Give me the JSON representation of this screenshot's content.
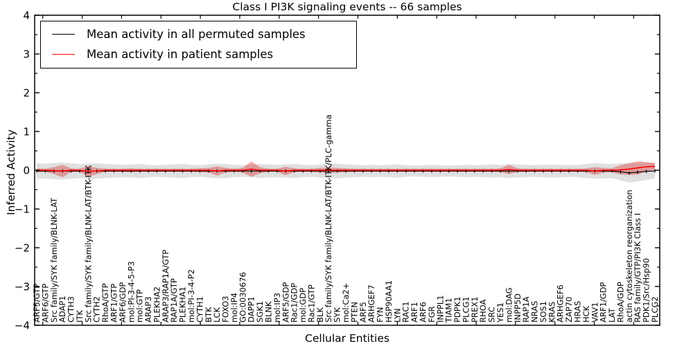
{
  "chart_data": {
    "type": "line",
    "title": "Class I PI3K signaling events -- 66 samples",
    "xlabel": "Cellular Entities",
    "ylabel": "Inferred Activity",
    "ylim": [
      -4,
      4
    ],
    "ytick_step": 1,
    "grid": false,
    "legend_position": "upper left",
    "categories": [
      "ARF5/GTP",
      "ARF6/GTP",
      "Src family/SYK family/BLNK-LAT",
      "ADAP1",
      "CYTH3",
      "ITK",
      "Src family/SYK family/BLNK-LAT/BTK-ITK",
      "CYTH2",
      "RhoA/GTP",
      "ARF1/GTP",
      "ARF6/GDP",
      "mol:PI-3-4-5-P3",
      "mol:GTP",
      "ARAP3",
      "PLEKHA2",
      "ARAP3/RAP1A/GTP",
      "RAP1A/GTP",
      "PLEKHA1",
      "mol:PI-3-4-P2",
      "CYTH1",
      "BTK",
      "LCK",
      "FOXO3",
      "mol:IP4",
      "GO:0030676",
      "DAPP1",
      "SGK1",
      "BLNK",
      "mol:IP3",
      "ARF5/GDP",
      "Rac1/GDP",
      "mol:GDP",
      "Rac1/GTP",
      "BLK",
      "Src family/SYK family/BLNK-LAT/BTK-ITK/PLC-gamma",
      "SYK",
      "mol:Ca2+",
      "PTEN",
      "ARF5",
      "ARHGEF7",
      "FYN",
      "HSP90AA1",
      "LYN",
      "RAC1",
      "ARF1",
      "ARF6",
      "FGR",
      "INPPL1",
      "TIAM1",
      "PDPK1",
      "PLCG1",
      "PREX1",
      "RHOA",
      "SRC",
      "YES1",
      "mol:DAG",
      "INPP5D",
      "RAP1A",
      "NRAS",
      "SOS1",
      "KRAS",
      "ARHGEF6",
      "ZAP70",
      "HRAS",
      "HCK",
      "VAV1",
      "ARF1/GDP",
      "LAT",
      "RhoA/GDP",
      "actin cytoskeleton reorganization",
      "RAS family/GTP/PI3K Class I",
      "PDK1/Src/Hsp90",
      "PLCG2"
    ],
    "series": [
      {
        "name": "Mean activity in all permuted samples",
        "color": "#000000",
        "band_color": "#bbbbbb",
        "band_opacity": 0.45,
        "values": [
          -0.02,
          -0.02,
          -0.02,
          -0.02,
          -0.02,
          -0.02,
          -0.02,
          -0.02,
          -0.02,
          -0.02,
          -0.02,
          -0.02,
          -0.02,
          -0.02,
          -0.02,
          -0.02,
          -0.02,
          -0.02,
          -0.02,
          -0.02,
          -0.02,
          -0.02,
          -0.02,
          -0.02,
          -0.02,
          -0.02,
          -0.02,
          -0.02,
          -0.02,
          -0.02,
          -0.02,
          -0.02,
          -0.02,
          -0.02,
          -0.02,
          -0.02,
          -0.02,
          -0.02,
          -0.02,
          -0.02,
          -0.02,
          -0.02,
          -0.02,
          -0.02,
          -0.02,
          -0.02,
          -0.02,
          -0.02,
          -0.02,
          -0.02,
          -0.02,
          -0.02,
          -0.02,
          -0.02,
          -0.02,
          -0.02,
          -0.02,
          -0.02,
          -0.02,
          -0.02,
          -0.02,
          -0.02,
          -0.02,
          -0.02,
          -0.02,
          -0.02,
          -0.02,
          -0.02,
          -0.04,
          -0.07,
          -0.05,
          -0.03,
          -0.02
        ],
        "band_halfwidth": [
          0.2,
          0.19,
          0.21,
          0.22,
          0.2,
          0.18,
          0.19,
          0.2,
          0.18,
          0.17,
          0.16,
          0.17,
          0.18,
          0.16,
          0.15,
          0.16,
          0.17,
          0.18,
          0.16,
          0.15,
          0.17,
          0.19,
          0.18,
          0.16,
          0.15,
          0.16,
          0.18,
          0.17,
          0.16,
          0.17,
          0.18,
          0.16,
          0.15,
          0.17,
          0.18,
          0.19,
          0.17,
          0.16,
          0.15,
          0.16,
          0.15,
          0.16,
          0.17,
          0.15,
          0.14,
          0.15,
          0.16,
          0.15,
          0.14,
          0.15,
          0.16,
          0.15,
          0.16,
          0.17,
          0.16,
          0.18,
          0.17,
          0.16,
          0.15,
          0.16,
          0.17,
          0.16,
          0.15,
          0.16,
          0.18,
          0.2,
          0.19,
          0.18,
          0.22,
          0.25,
          0.24,
          0.22,
          0.2
        ]
      },
      {
        "name": "Mean activity in patient samples",
        "color": "#ff0000",
        "band_color": "#dd3333",
        "band_opacity": 0.4,
        "values": [
          0,
          0,
          -0.01,
          -0.02,
          0,
          0,
          -0.03,
          -0.02,
          0,
          0,
          0,
          0,
          0,
          0,
          0,
          0,
          0,
          0,
          0,
          0,
          0,
          -0.02,
          0,
          0,
          0,
          0.03,
          0,
          0,
          0,
          -0.02,
          0,
          0,
          0,
          0,
          0,
          0,
          0,
          0,
          0,
          0,
          0,
          0,
          0,
          0,
          0,
          0,
          0,
          0,
          0,
          0,
          0,
          0,
          0,
          0,
          0,
          0.02,
          0,
          0,
          0,
          0,
          0,
          0,
          0,
          0,
          0,
          -0.02,
          0,
          0,
          0.01,
          0.03,
          0.06,
          0.09,
          0.1
        ],
        "band_halfwidth": [
          0.05,
          0.04,
          0.09,
          0.16,
          0.05,
          0.04,
          0.14,
          0.08,
          0.04,
          0.04,
          0.04,
          0.05,
          0.04,
          0.04,
          0.04,
          0.04,
          0.04,
          0.04,
          0.04,
          0.05,
          0.06,
          0.12,
          0.06,
          0.04,
          0.06,
          0.2,
          0.08,
          0.04,
          0.04,
          0.11,
          0.05,
          0.04,
          0.04,
          0.06,
          0.07,
          0.06,
          0.05,
          0.04,
          0.04,
          0.04,
          0.04,
          0.04,
          0.04,
          0.04,
          0.04,
          0.04,
          0.04,
          0.04,
          0.04,
          0.04,
          0.04,
          0.04,
          0.04,
          0.04,
          0.05,
          0.12,
          0.05,
          0.04,
          0.04,
          0.04,
          0.04,
          0.04,
          0.04,
          0.04,
          0.05,
          0.1,
          0.06,
          0.05,
          0.12,
          0.15,
          0.17,
          0.12,
          0.09
        ]
      }
    ]
  }
}
